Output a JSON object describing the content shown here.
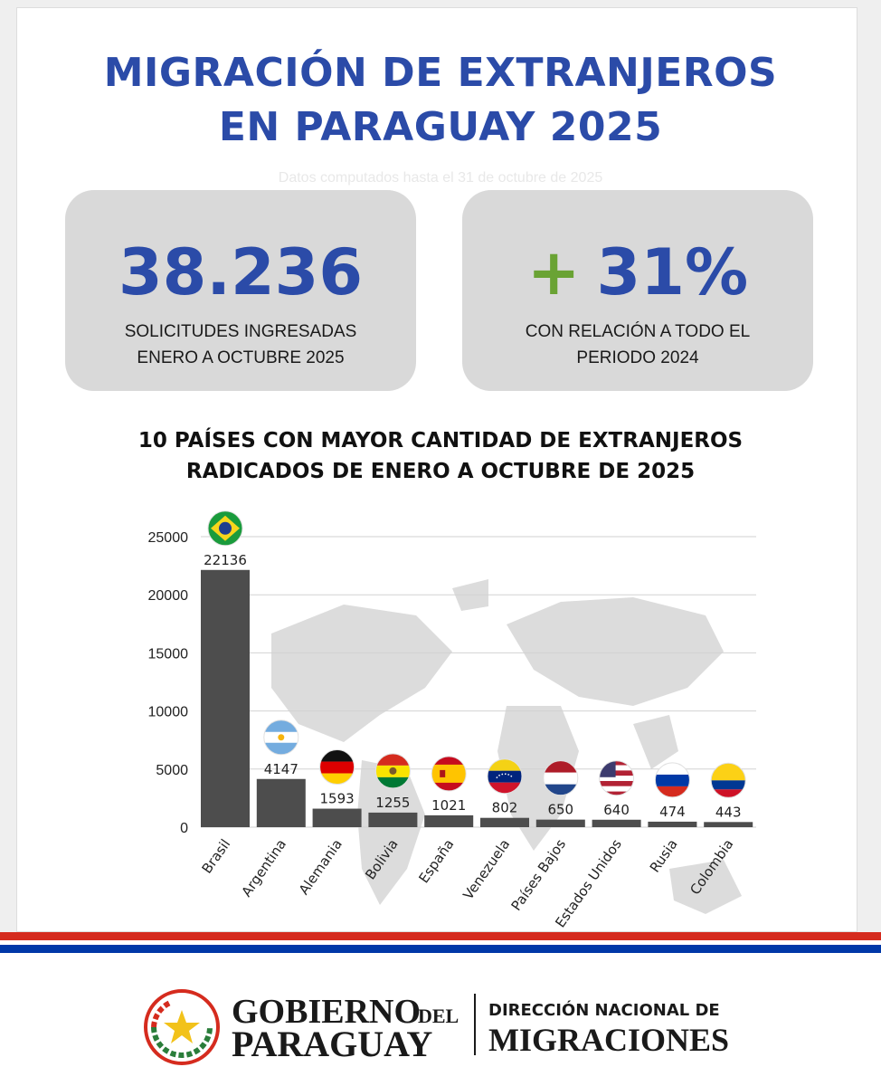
{
  "header": {
    "title_line1": "MIGRACIÓN DE EXTRANJEROS",
    "title_line2": "EN PARAGUAY 2025",
    "subnote": "Datos computados hasta el 31 de octubre de 2025"
  },
  "stats": [
    {
      "value": "38.236",
      "line1": "SOLICITUDES INGRESADAS",
      "line2": "ENERO A OCTUBRE 2025"
    },
    {
      "prefix": "+",
      "value": "31%",
      "line1": "CON RELACIÓN A TODO EL",
      "line2": "PERIODO 2024"
    }
  ],
  "chart_title": {
    "line1": "10 PAÍSES CON MAYOR CANTIDAD DE EXTRANJEROS",
    "line2": "RADICADOS DE ENERO A OCTUBRE DE 2025"
  },
  "chart_data": {
    "type": "bar",
    "title": "10 PAÍSES CON MAYOR CANTIDAD DE EXTRANJEROS RADICADOS DE ENERO A OCTUBRE DE 2025",
    "categories": [
      "Brasil",
      "Argentina",
      "Alemania",
      "Bolivia",
      "España",
      "Venezuela",
      "Países Bajos",
      "Estados Unidos",
      "Rusia",
      "Colombia"
    ],
    "values": [
      22136,
      4147,
      1593,
      1255,
      1021,
      802,
      650,
      640,
      474,
      443
    ],
    "ylim": [
      0,
      25000
    ],
    "yticks": [
      0,
      5000,
      10000,
      15000,
      20000,
      25000
    ],
    "grid": true,
    "bar_color": "#4d4d4d",
    "flags": [
      "brazil-flag-icon",
      "argentina-flag-icon",
      "germany-flag-icon",
      "bolivia-flag-icon",
      "spain-flag-icon",
      "venezuela-flag-icon",
      "netherlands-flag-icon",
      "usa-flag-icon",
      "russia-flag-icon",
      "colombia-flag-icon"
    ]
  },
  "footer": {
    "gov_line1": "GOBIERNO",
    "gov_del": "DEL",
    "gov_line2": "PARAGUAY",
    "dept_line1": "DIRECCIÓN NACIONAL DE",
    "dept_line2": "MIGRACIONES"
  },
  "colors": {
    "title_blue": "#2b4ba8",
    "plus_green": "#6aa334",
    "stripe_red": "#d52b1e",
    "stripe_blue": "#0038a8"
  }
}
